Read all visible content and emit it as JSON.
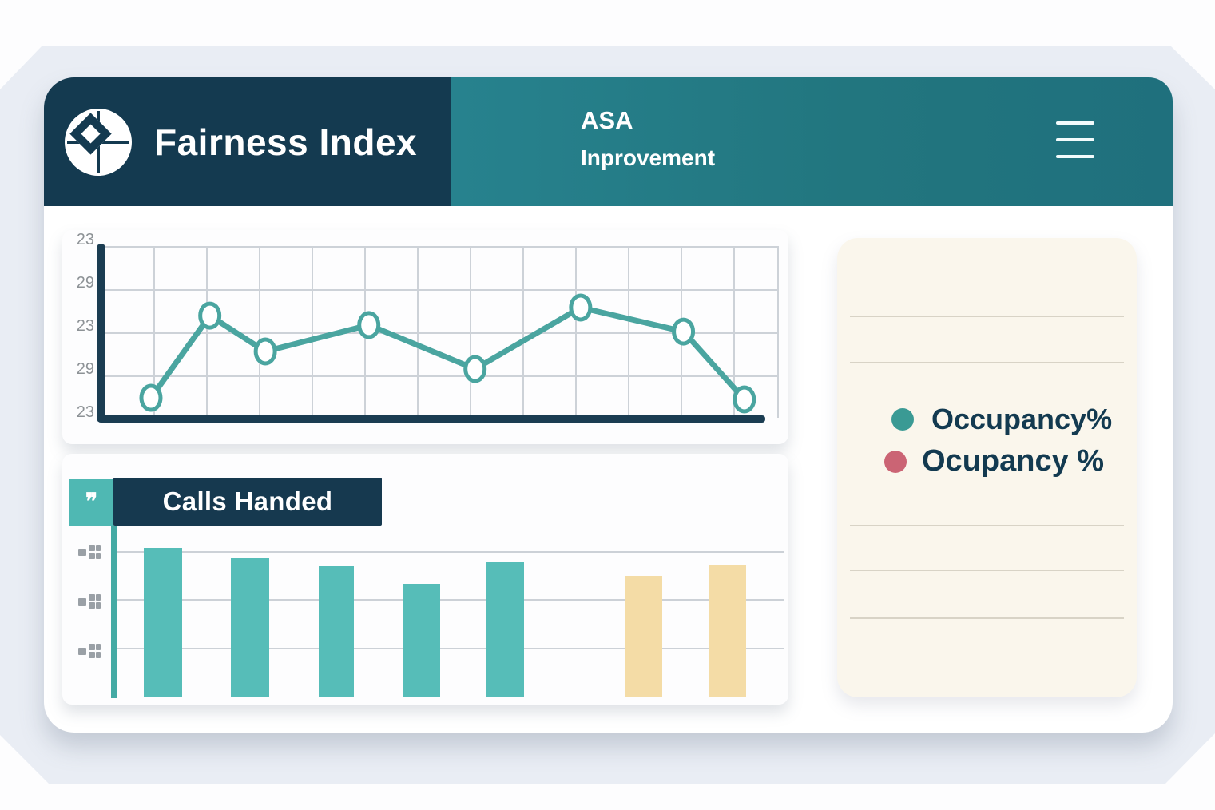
{
  "header": {
    "title": "Fairness Index",
    "nav_primary": "ASA",
    "nav_secondary": "Inprovement",
    "colors": {
      "navy": "#143A50",
      "teal": "#26808C"
    }
  },
  "bar_section": {
    "title": "Calls Handed"
  },
  "legend": {
    "items": [
      {
        "label": "Occupancy%",
        "color": "#3A9A94"
      },
      {
        "label": "Ocupancy %",
        "color": "#CB6474"
      }
    ]
  },
  "chart_data": [
    {
      "type": "line",
      "title": "",
      "y_tick_labels": [
        "23",
        "29",
        "23",
        "29",
        "23"
      ],
      "x_pct": [
        7.2,
        15.9,
        24.1,
        39.4,
        55.1,
        70.7,
        85.9,
        94.9
      ],
      "values": [
        11.6,
        59.5,
        38.6,
        54.0,
        28.4,
        64.2,
        50.2,
        10.7
      ],
      "ylim": [
        0,
        100
      ],
      "line_color": "#4AA5A0",
      "marker": "open-circle",
      "marker_fill": "#FFFFFF",
      "grid": true,
      "legend_position": "right-card"
    },
    {
      "type": "bar",
      "title": "Calls Handed",
      "categories": [
        "",
        "",
        "",
        "",
        "",
        "",
        ""
      ],
      "values": [
        88.6,
        82.9,
        78.1,
        67.1,
        80.5,
        71.9,
        78.6
      ],
      "x_pct": [
        4.3,
        17.3,
        30.4,
        43.0,
        55.4,
        76.1,
        88.5
      ],
      "width_pct": [
        5.7,
        5.7,
        5.2,
        5.4,
        5.6,
        5.5,
        5.6
      ],
      "bar_colors": [
        "#56BDB8",
        "#56BDB8",
        "#56BDB8",
        "#56BDB8",
        "#56BDB8",
        "#F4DCA6",
        "#F4DCA6"
      ],
      "ylim": [
        0,
        100
      ],
      "grid": "horizontal"
    }
  ]
}
